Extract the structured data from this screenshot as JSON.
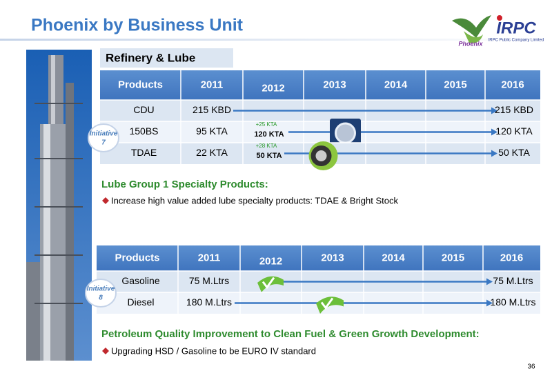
{
  "header": {
    "title": "Phoenix by Business Unit",
    "logo_text": "Phoenix",
    "company": "IRPC",
    "company_caption": "IRPC Public Company Limited"
  },
  "sections": [
    {
      "title": "Refinery & Lube",
      "table": {
        "columns": [
          "Products",
          "2011",
          "2012",
          "2013",
          "2014",
          "2015",
          "2016"
        ],
        "rows": [
          {
            "product": "CDU",
            "start": "215 KBD",
            "end": "215 KBD"
          },
          {
            "product": "150BS",
            "start": "95 KTA",
            "end": "120 KTA",
            "increase": "+25 KTA",
            "target": "120 KTA"
          },
          {
            "product": "TDAE",
            "start": "22 KTA",
            "end": "50 KTA",
            "increase": "+28 KTA",
            "target": "50 KTA"
          }
        ]
      },
      "initiative": {
        "label": "Initiative",
        "number": "7"
      },
      "subtitle": "Lube Group 1 Specialty Products:",
      "bullet": "Increase high value added lube specialty products: TDAE & Bright Stock"
    },
    {
      "table": {
        "columns": [
          "Products",
          "2011",
          "2012",
          "2013",
          "2014",
          "2015",
          "2016"
        ],
        "rows": [
          {
            "product": "Gasoline",
            "start": "75 M.Ltrs",
            "end": "75 M.Ltrs"
          },
          {
            "product": "Diesel",
            "start": "180 M.Ltrs",
            "end": "180 M.Ltrs"
          }
        ]
      },
      "initiative": {
        "label": "Initiative",
        "number": "8"
      },
      "subtitle": "Petroleum Quality Improvement to Clean Fuel & Green Growth Development:",
      "bullet": "Upgrading HSD / Gasoline to be EURO IV standard"
    }
  ],
  "footer": {
    "page_number": "36"
  }
}
